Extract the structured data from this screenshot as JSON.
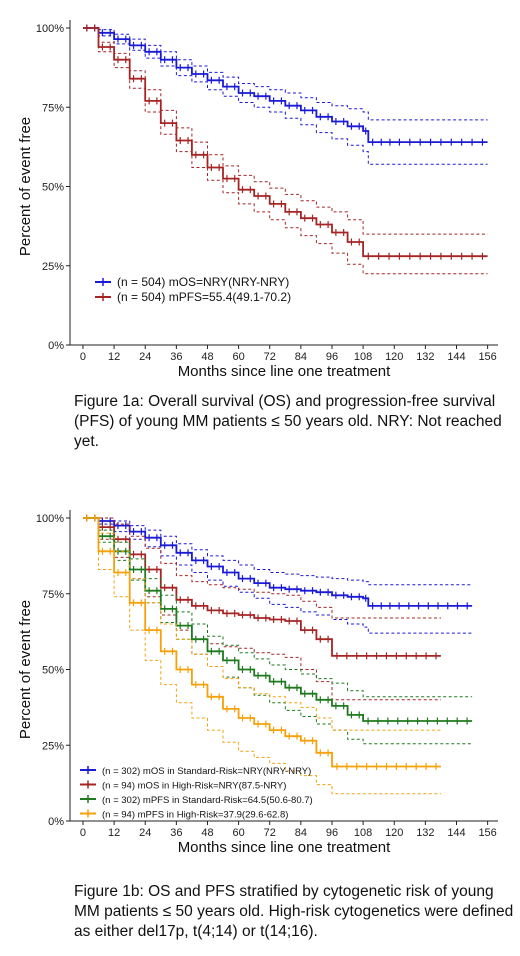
{
  "chart_data": [
    {
      "type": "line",
      "subtype": "kaplan-meier",
      "xlabel": "Months since line one treatment",
      "ylabel": "Percent of event free",
      "xlim": [
        -5,
        160
      ],
      "ylim": [
        0,
        1
      ],
      "x_ticks": [
        0,
        12,
        24,
        36,
        48,
        60,
        72,
        84,
        96,
        108,
        120,
        132,
        144,
        156
      ],
      "y_ticks": [
        {
          "v": 0,
          "label": "0%"
        },
        {
          "v": 0.25,
          "label": "25%"
        },
        {
          "v": 0.5,
          "label": "50%"
        },
        {
          "v": 0.75,
          "label": "75%"
        },
        {
          "v": 1,
          "label": "100%"
        }
      ],
      "legend_position": "bottom-left",
      "grid": false,
      "caption": "Figure 1a: Overall survival (OS) and progression-free survival (PFS) of young MM patients ≤ 50 years old. NRY: Not reached yet.",
      "series": [
        {
          "name": "(n = 504) mOS=NRY(NRY-NRY)",
          "color": "#1a1ad6",
          "x": [
            0,
            6,
            12,
            18,
            24,
            30,
            36,
            42,
            48,
            54,
            60,
            66,
            72,
            78,
            84,
            90,
            96,
            102,
            108,
            110,
            120,
            156
          ],
          "y": [
            1.0,
            0.985,
            0.965,
            0.945,
            0.925,
            0.9,
            0.875,
            0.855,
            0.835,
            0.815,
            0.795,
            0.785,
            0.77,
            0.755,
            0.74,
            0.72,
            0.705,
            0.69,
            0.675,
            0.64,
            0.64,
            0.64
          ],
          "lower": [
            1.0,
            0.975,
            0.95,
            0.93,
            0.905,
            0.88,
            0.85,
            0.83,
            0.805,
            0.785,
            0.765,
            0.75,
            0.735,
            0.715,
            0.695,
            0.67,
            0.65,
            0.63,
            0.61,
            0.57,
            0.57,
            0.57
          ],
          "upper": [
            1.0,
            0.995,
            0.98,
            0.965,
            0.945,
            0.925,
            0.9,
            0.88,
            0.86,
            0.845,
            0.825,
            0.815,
            0.805,
            0.795,
            0.78,
            0.765,
            0.755,
            0.745,
            0.735,
            0.71,
            0.71,
            0.71
          ]
        },
        {
          "name": "(n = 504) mPFS=55.4(49.1-70.2)",
          "color": "#a52424",
          "x": [
            0,
            6,
            12,
            18,
            24,
            30,
            36,
            42,
            48,
            54,
            60,
            66,
            72,
            78,
            84,
            90,
            96,
            102,
            108,
            156
          ],
          "y": [
            1.0,
            0.94,
            0.9,
            0.84,
            0.77,
            0.7,
            0.645,
            0.6,
            0.56,
            0.525,
            0.49,
            0.47,
            0.445,
            0.42,
            0.4,
            0.38,
            0.355,
            0.325,
            0.28,
            0.28
          ],
          "lower": [
            1.0,
            0.925,
            0.875,
            0.81,
            0.735,
            0.665,
            0.61,
            0.56,
            0.52,
            0.48,
            0.445,
            0.42,
            0.395,
            0.37,
            0.345,
            0.32,
            0.29,
            0.255,
            0.225,
            0.225
          ],
          "upper": [
            1.0,
            0.955,
            0.92,
            0.865,
            0.805,
            0.74,
            0.685,
            0.64,
            0.6,
            0.565,
            0.535,
            0.515,
            0.495,
            0.475,
            0.455,
            0.435,
            0.42,
            0.395,
            0.35,
            0.35
          ]
        }
      ]
    },
    {
      "type": "line",
      "subtype": "kaplan-meier",
      "xlabel": "Months since line one treatment",
      "ylabel": "Percent of event free",
      "xlim": [
        -5,
        160
      ],
      "ylim": [
        0,
        1
      ],
      "x_ticks": [
        0,
        12,
        24,
        36,
        48,
        60,
        72,
        84,
        96,
        108,
        120,
        132,
        144,
        156
      ],
      "y_ticks": [
        {
          "v": 0,
          "label": "0%"
        },
        {
          "v": 0.25,
          "label": "25%"
        },
        {
          "v": 0.5,
          "label": "50%"
        },
        {
          "v": 0.75,
          "label": "75%"
        },
        {
          "v": 1,
          "label": "100%"
        }
      ],
      "legend_position": "bottom-left",
      "grid": false,
      "caption": "Figure 1b: OS and PFS stratified by cytogenetic risk of young MM patients ≤ 50 years old. High-risk cytogenetics were defined as either del17p, t(4;14) or t(14;16).",
      "series": [
        {
          "name": "(n = 302) mOS in Standard-Risk=NRY(NRY-NRY)",
          "color": "#1a1ad6",
          "x": [
            0,
            6,
            12,
            18,
            24,
            30,
            36,
            42,
            48,
            54,
            60,
            66,
            72,
            78,
            84,
            90,
            96,
            102,
            108,
            110,
            120,
            150
          ],
          "y": [
            1.0,
            0.99,
            0.975,
            0.955,
            0.935,
            0.91,
            0.885,
            0.86,
            0.84,
            0.82,
            0.8,
            0.785,
            0.77,
            0.765,
            0.76,
            0.755,
            0.745,
            0.74,
            0.735,
            0.71,
            0.71,
            0.71
          ],
          "lower": [
            1.0,
            0.98,
            0.955,
            0.93,
            0.905,
            0.875,
            0.845,
            0.82,
            0.795,
            0.775,
            0.755,
            0.735,
            0.715,
            0.705,
            0.69,
            0.68,
            0.665,
            0.65,
            0.64,
            0.62,
            0.62,
            0.62
          ],
          "upper": [
            1.0,
            1.0,
            0.99,
            0.975,
            0.96,
            0.94,
            0.915,
            0.895,
            0.875,
            0.86,
            0.845,
            0.83,
            0.82,
            0.815,
            0.81,
            0.805,
            0.8,
            0.795,
            0.79,
            0.78,
            0.78,
            0.78
          ]
        },
        {
          "name": "(n = 94) mOS in High-Risk=NRY(87.5-NRY)",
          "color": "#a52424",
          "x": [
            0,
            6,
            12,
            18,
            24,
            30,
            36,
            42,
            48,
            54,
            60,
            66,
            72,
            78,
            84,
            90,
            96,
            138
          ],
          "y": [
            1.0,
            0.97,
            0.93,
            0.88,
            0.83,
            0.77,
            0.73,
            0.71,
            0.695,
            0.685,
            0.68,
            0.67,
            0.665,
            0.66,
            0.63,
            0.6,
            0.545,
            0.545
          ],
          "lower": [
            1.0,
            0.93,
            0.87,
            0.8,
            0.74,
            0.68,
            0.63,
            0.6,
            0.585,
            0.575,
            0.57,
            0.555,
            0.55,
            0.54,
            0.5,
            0.46,
            0.4,
            0.4
          ],
          "upper": [
            1.0,
            1.0,
            0.98,
            0.94,
            0.9,
            0.85,
            0.81,
            0.79,
            0.78,
            0.77,
            0.765,
            0.755,
            0.75,
            0.745,
            0.725,
            0.705,
            0.67,
            0.67
          ]
        },
        {
          "name": "(n = 302) mPFS in Standard-Risk=64.5(50.6-80.7)",
          "color": "#1f7a1f",
          "x": [
            0,
            6,
            12,
            18,
            24,
            30,
            36,
            42,
            48,
            54,
            60,
            66,
            72,
            78,
            84,
            90,
            96,
            102,
            108,
            150
          ],
          "y": [
            1.0,
            0.94,
            0.89,
            0.83,
            0.76,
            0.7,
            0.645,
            0.6,
            0.56,
            0.53,
            0.5,
            0.48,
            0.46,
            0.44,
            0.42,
            0.4,
            0.38,
            0.35,
            0.33,
            0.33
          ],
          "lower": [
            1.0,
            0.92,
            0.86,
            0.795,
            0.72,
            0.655,
            0.6,
            0.55,
            0.51,
            0.475,
            0.44,
            0.415,
            0.39,
            0.365,
            0.345,
            0.32,
            0.3,
            0.27,
            0.255,
            0.255
          ],
          "upper": [
            1.0,
            0.96,
            0.92,
            0.865,
            0.8,
            0.745,
            0.69,
            0.65,
            0.61,
            0.58,
            0.555,
            0.535,
            0.515,
            0.5,
            0.485,
            0.47,
            0.455,
            0.43,
            0.41,
            0.41
          ]
        },
        {
          "name": "(n = 94) mPFS in High-Risk=37.9(29.6-62.8)",
          "color": "#f5a10a",
          "x": [
            0,
            6,
            12,
            18,
            24,
            30,
            36,
            42,
            48,
            54,
            60,
            66,
            72,
            78,
            84,
            90,
            96,
            138
          ],
          "y": [
            1.0,
            0.89,
            0.82,
            0.72,
            0.63,
            0.56,
            0.5,
            0.45,
            0.41,
            0.37,
            0.34,
            0.32,
            0.3,
            0.28,
            0.265,
            0.225,
            0.18,
            0.18
          ],
          "lower": [
            1.0,
            0.83,
            0.74,
            0.63,
            0.53,
            0.45,
            0.39,
            0.34,
            0.3,
            0.26,
            0.23,
            0.21,
            0.19,
            0.165,
            0.15,
            0.12,
            0.09,
            0.09
          ],
          "upper": [
            1.0,
            0.95,
            0.89,
            0.8,
            0.72,
            0.65,
            0.6,
            0.55,
            0.51,
            0.47,
            0.44,
            0.42,
            0.41,
            0.39,
            0.375,
            0.34,
            0.3,
            0.3
          ]
        }
      ]
    }
  ]
}
